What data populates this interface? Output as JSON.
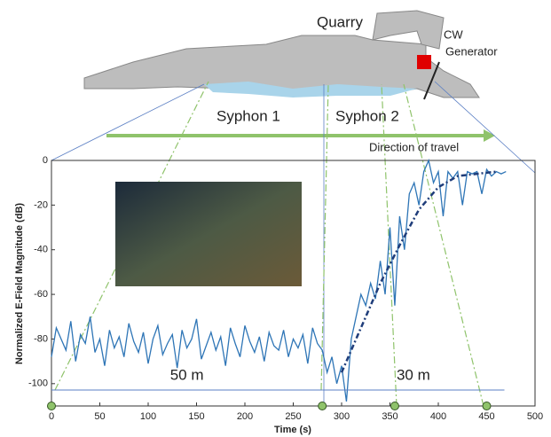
{
  "chart_data": {
    "type": "line",
    "ylabel": "Normalized E-Field Magnitude (dB)",
    "xlabel": "Time (s)",
    "annotations": {
      "quarry": "Quarry",
      "cw": "CW",
      "generator": "Generator",
      "syphon1": "Syphon 1",
      "syphon2": "Syphon 2",
      "direction": "Direction of travel",
      "dist1": "50 m",
      "dist2": "30 m"
    },
    "x": [
      0,
      5,
      10,
      15,
      20,
      25,
      30,
      35,
      40,
      45,
      50,
      55,
      60,
      65,
      70,
      75,
      80,
      85,
      90,
      95,
      100,
      105,
      110,
      115,
      120,
      125,
      130,
      135,
      140,
      145,
      150,
      155,
      160,
      165,
      170,
      175,
      180,
      185,
      190,
      195,
      200,
      205,
      210,
      215,
      220,
      225,
      230,
      235,
      240,
      245,
      250,
      255,
      260,
      265,
      270,
      275,
      280,
      285,
      290,
      295,
      300,
      305,
      310,
      315,
      320,
      325,
      330,
      335,
      340,
      345,
      350,
      355,
      360,
      365,
      370,
      375,
      380,
      385,
      390,
      395,
      400,
      405,
      410,
      415,
      420,
      425,
      430,
      435,
      440,
      445,
      450,
      455,
      460,
      465,
      470
    ],
    "series": [
      {
        "color": "#2e75b6",
        "values": [
          -88,
          -75,
          -80,
          -85,
          -72,
          -90,
          -78,
          -82,
          -70,
          -86,
          -80,
          -92,
          -76,
          -84,
          -79,
          -88,
          -73,
          -81,
          -86,
          -77,
          -91,
          -80,
          -74,
          -87,
          -82,
          -78,
          -93,
          -76,
          -84,
          -80,
          -71,
          -89,
          -83,
          -77,
          -85,
          -79,
          -92,
          -75,
          -82,
          -88,
          -74,
          -81,
          -86,
          -79,
          -90,
          -77,
          -83,
          -85,
          -76,
          -88,
          -80,
          -84,
          -78,
          -91,
          -75,
          -82,
          -85,
          -95,
          -88,
          -100,
          -92,
          -108,
          -80,
          -70,
          -60,
          -65,
          -55,
          -62,
          -45,
          -60,
          -30,
          -65,
          -25,
          -40,
          -15,
          -10,
          -20,
          -5,
          0,
          -10,
          -5,
          -25,
          -5,
          -8,
          -5,
          -20,
          -5,
          -6,
          -5,
          -15,
          -4,
          -7,
          -5,
          -6,
          -5
        ]
      }
    ],
    "fit": {
      "color": "#1f3d7a",
      "x": [
        300,
        320,
        340,
        360,
        380,
        400,
        420,
        440,
        460
      ],
      "values": [
        -95,
        -75,
        -55,
        -38,
        -22,
        -12,
        -7,
        -6,
        -5
      ]
    },
    "markers_x": [
      0,
      280,
      355,
      450
    ],
    "xlim": [
      0,
      500
    ],
    "ylim": [
      -110,
      0
    ],
    "xticks": [
      0,
      50,
      100,
      150,
      200,
      250,
      300,
      350,
      400,
      450,
      500
    ],
    "yticks": [
      0,
      -20,
      -40,
      -60,
      -80,
      -100
    ]
  }
}
